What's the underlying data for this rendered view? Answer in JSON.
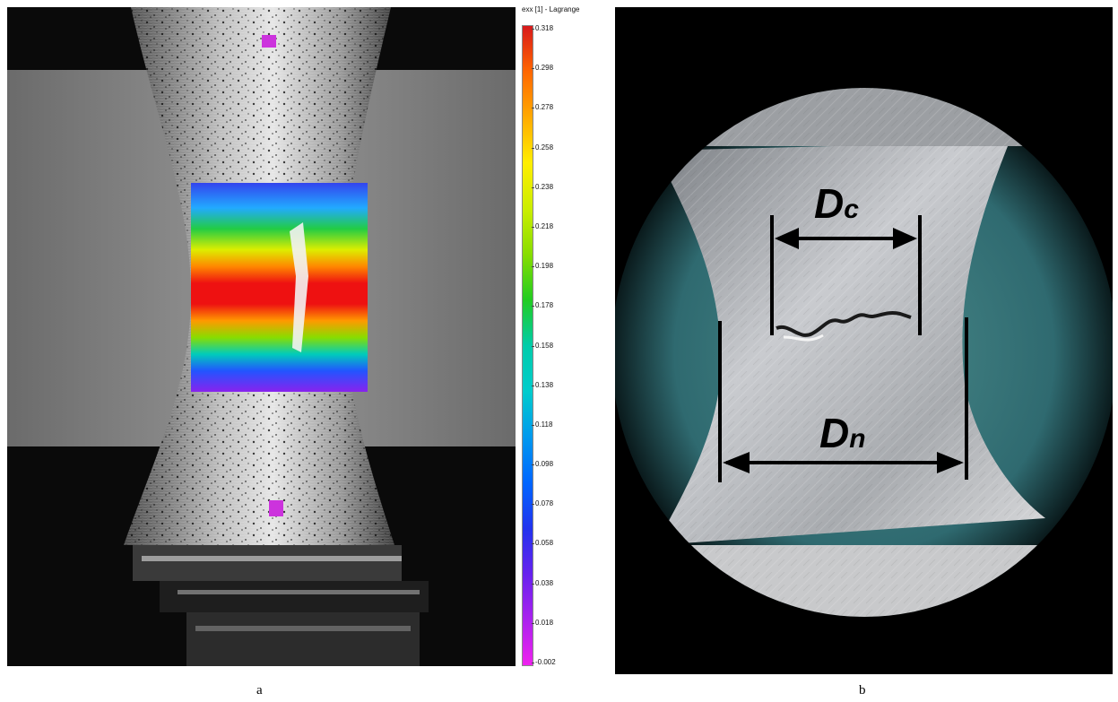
{
  "panel_a": {
    "caption": "a",
    "colorbar": {
      "title": "exx [1] - Lagrange",
      "ticks": [
        "0.318",
        "0.298",
        "0.278",
        "0.258",
        "0.238",
        "0.218",
        "0.198",
        "0.178",
        "0.158",
        "0.138",
        "0.118",
        "0.098",
        "0.078",
        "0.058",
        "0.038",
        "0.018",
        "-0.002"
      ],
      "colors": [
        "#d7191c",
        "#ff6600",
        "#ffaa00",
        "#ffee00",
        "#ccee00",
        "#88dd00",
        "#22cc22",
        "#00ccaa",
        "#00cccc",
        "#0099ee",
        "#0066ff",
        "#2233ee",
        "#6622ee",
        "#aa22ee",
        "#ee22ee"
      ]
    }
  },
  "panel_b": {
    "caption": "b",
    "label_dc": {
      "main": "D",
      "sub": "c"
    },
    "label_dn": {
      "main": "D",
      "sub": "n"
    }
  }
}
